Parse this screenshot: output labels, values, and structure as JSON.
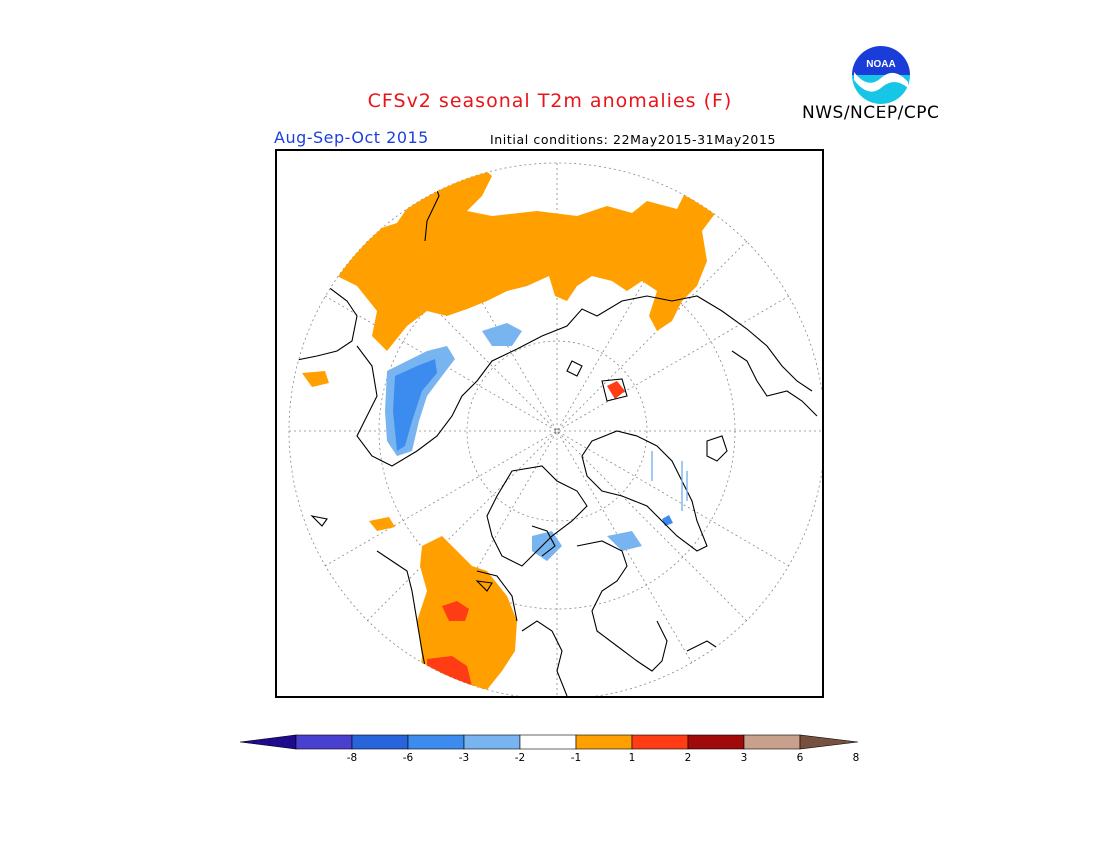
{
  "title": "CFSv2 seasonal T2m anomalies (F)",
  "period": "Aug-Sep-Oct 2015",
  "initial_conditions": "Initial conditions: 22May2015-31May2015",
  "agency": "NWS/NCEP/CPC",
  "logo": {
    "text": "NOAA",
    "icon": "noaa-logo"
  },
  "colors": {
    "title": "#e8141a",
    "period": "#1e3fe0",
    "warm_1_2": "#ffa000",
    "warm_2_3": "#ff3c14",
    "cool_1_2": "#78b4f0",
    "cool_2_3": "#3c8cf0"
  },
  "colorbar": {
    "tick_labels": [
      "-8",
      "-6",
      "-3",
      "-2",
      "-1",
      "1",
      "2",
      "3",
      "6",
      "8"
    ],
    "colors": [
      "#1e0a8c",
      "#4a40d0",
      "#2864dc",
      "#3c8cf0",
      "#78b4f0",
      "#ffffff",
      "#ffa000",
      "#ff3c14",
      "#a00a0a",
      "#c8a08c",
      "#785040"
    ]
  }
}
